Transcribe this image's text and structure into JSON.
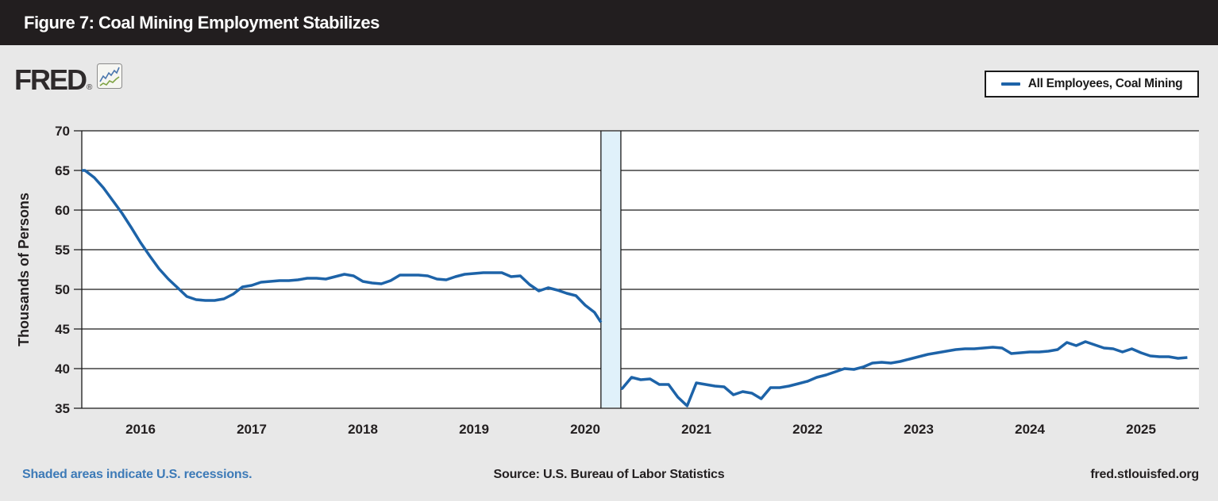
{
  "header": {
    "title": "Figure 7: Coal Mining Employment Stabilizes"
  },
  "logo": {
    "text": "FRED",
    "registered": "®",
    "icon": "fred-sparkline-icon"
  },
  "legend": {
    "items": [
      {
        "label": "All Employees, Coal Mining",
        "color": "#1d63a8"
      }
    ]
  },
  "chart_data": {
    "type": "line",
    "title": "Figure 7: Coal Mining Employment Stabilizes",
    "xlabel": "",
    "ylabel": "Thousands of Persons",
    "ylim": [
      35,
      70
    ],
    "yticks": [
      35,
      40,
      45,
      50,
      55,
      60,
      65,
      70
    ],
    "xticks": [
      "2016",
      "2017",
      "2018",
      "2019",
      "2020",
      "2021",
      "2022",
      "2023",
      "2024",
      "2025"
    ],
    "grid": "horizontal",
    "legend_position": "top-right",
    "start": "2015-07",
    "frequency": "monthly",
    "recession": {
      "start": "2020-02",
      "end": "2020-04",
      "fill": "#e0f1fa",
      "note": "U.S. recession (shaded)"
    },
    "series": [
      {
        "name": "All Employees, Coal Mining",
        "color": "#1d63a8",
        "values": [
          65.0,
          64.1,
          62.8,
          61.2,
          59.6,
          57.8,
          55.9,
          54.2,
          52.6,
          51.3,
          50.2,
          49.1,
          48.7,
          48.6,
          48.6,
          48.8,
          49.4,
          50.3,
          50.5,
          50.9,
          51.0,
          51.1,
          51.1,
          51.2,
          51.4,
          51.4,
          51.3,
          51.6,
          51.9,
          51.7,
          51.0,
          50.8,
          50.7,
          51.1,
          51.8,
          51.8,
          51.8,
          51.7,
          51.3,
          51.2,
          51.6,
          51.9,
          52.0,
          52.1,
          52.1,
          52.1,
          51.6,
          51.7,
          50.6,
          49.8,
          50.2,
          49.9,
          49.5,
          49.2,
          48.0,
          47.1,
          45.3,
          37.2,
          37.5,
          38.9,
          38.6,
          38.7,
          38.0,
          38.0,
          36.4,
          35.3,
          38.2,
          38.0,
          37.8,
          37.7,
          36.7,
          37.1,
          36.9,
          36.2,
          37.6,
          37.6,
          37.8,
          38.1,
          38.4,
          38.9,
          39.2,
          39.6,
          40.0,
          39.9,
          40.2,
          40.7,
          40.8,
          40.7,
          40.9,
          41.2,
          41.5,
          41.8,
          42.0,
          42.2,
          42.4,
          42.5,
          42.5,
          42.6,
          42.7,
          42.6,
          41.9,
          42.0,
          42.1,
          42.1,
          42.2,
          42.4,
          43.3,
          42.9,
          43.4,
          43.0,
          42.6,
          42.5,
          42.1,
          42.5,
          42.0,
          41.6,
          41.5,
          41.5,
          41.3,
          41.4
        ]
      }
    ]
  },
  "footer": {
    "note": "Shaded areas indicate U.S. recessions.",
    "source": "Source: U.S. Bureau of Labor Statistics",
    "site": "fred.stlouisfed.org"
  }
}
